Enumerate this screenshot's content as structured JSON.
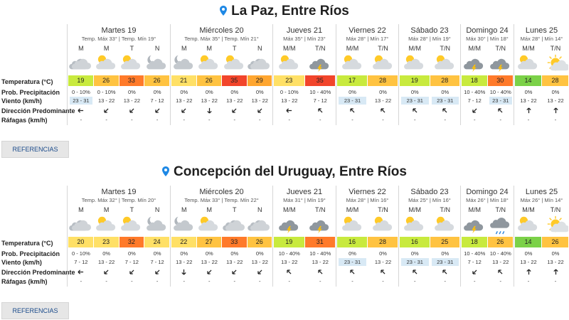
{
  "colors": {
    "pin": "#1e88e5",
    "highlight": "#d8e9f5"
  },
  "row_labels": [
    "Temperatura (°C)",
    "Prob. Precipitación",
    "Viento (km/h)",
    "Dirección Predominante",
    "Ráfagas (km/h)"
  ],
  "references_label": "REFERENCIAS",
  "cities": [
    {
      "name": "La Paz, Entre Ríos",
      "days": [
        {
          "name": "Martes 19",
          "range": "Temp. Máx 33° | Temp. Mín 19°",
          "periods": [
            {
              "label": "M",
              "icon": "cloud-icon",
              "temp": "19",
              "color": "#c8ea3e",
              "precip": "0 - 10%",
              "wind": "23 - 31",
              "hl": true,
              "dir": "left",
              "gust": "-"
            },
            {
              "label": "M",
              "icon": "sun-cloud-icon",
              "temp": "26",
              "color": "#ffc341",
              "precip": "0 - 10%",
              "wind": "13 - 22",
              "hl": false,
              "dir": "downleft",
              "gust": "-"
            },
            {
              "label": "T",
              "icon": "sun-cloud-icon",
              "temp": "33",
              "color": "#ff7a2a",
              "precip": "0%",
              "wind": "13 - 22",
              "hl": false,
              "dir": "downleft",
              "gust": "-"
            },
            {
              "label": "N",
              "icon": "moon-cloud-icon",
              "temp": "26",
              "color": "#ffc341",
              "precip": "0%",
              "wind": "7 - 12",
              "hl": false,
              "dir": "downleft",
              "gust": "-"
            }
          ]
        },
        {
          "name": "Miércoles 20",
          "range": "Temp. Máx 35° | Temp. Mín 21°",
          "periods": [
            {
              "label": "M",
              "icon": "moon-cloud-icon",
              "temp": "21",
              "color": "#ffe066",
              "precip": "0%",
              "wind": "13 - 22",
              "hl": false,
              "dir": "downleft",
              "gust": "-"
            },
            {
              "label": "M",
              "icon": "sun-cloud-icon",
              "temp": "26",
              "color": "#ffc341",
              "precip": "0%",
              "wind": "13 - 22",
              "hl": false,
              "dir": "down",
              "gust": "-"
            },
            {
              "label": "T",
              "icon": "sun-cloud-icon",
              "temp": "35",
              "color": "#f2452b",
              "precip": "0%",
              "wind": "13 - 22",
              "hl": false,
              "dir": "downleft",
              "gust": "-"
            },
            {
              "label": "N",
              "icon": "cloud-icon",
              "temp": "29",
              "color": "#ffa630",
              "precip": "0%",
              "wind": "13 - 22",
              "hl": false,
              "dir": "downleft",
              "gust": "-"
            }
          ]
        },
        {
          "name": "Jueves 21",
          "range": "Máx 35° | Mín 23°",
          "periods": [
            {
              "label": "M/M",
              "icon": "sun-cloud-icon",
              "temp": "23",
              "color": "#ffe066",
              "precip": "0 - 10%",
              "wind": "13 - 22",
              "hl": false,
              "dir": "left",
              "gust": "-"
            },
            {
              "label": "T/N",
              "icon": "storm-icon",
              "temp": "35",
              "color": "#f2452b",
              "precip": "10 - 40%",
              "wind": "7 - 12",
              "hl": false,
              "dir": "upleft",
              "gust": "-"
            }
          ]
        },
        {
          "name": "Viernes 22",
          "range": "Máx 28° | Mín 17°",
          "periods": [
            {
              "label": "M/M",
              "icon": "sun-cloud-icon",
              "temp": "17",
              "color": "#c8ea3e",
              "precip": "0%",
              "wind": "23 - 31",
              "hl": true,
              "dir": "upleft",
              "gust": "-"
            },
            {
              "label": "T/N",
              "icon": "sun-cloud-icon",
              "temp": "28",
              "color": "#ffc341",
              "precip": "0%",
              "wind": "13 - 22",
              "hl": false,
              "dir": "upleft",
              "gust": "-"
            }
          ]
        },
        {
          "name": "Sábado 23",
          "range": "Máx 28° | Mín 19°",
          "periods": [
            {
              "label": "M/M",
              "icon": "sun-cloud-icon",
              "temp": "19",
              "color": "#c8ea3e",
              "precip": "0%",
              "wind": "23 - 31",
              "hl": true,
              "dir": "upleft",
              "gust": "-"
            },
            {
              "label": "T/N",
              "icon": "sun-cloud-icon",
              "temp": "28",
              "color": "#ffc341",
              "precip": "0%",
              "wind": "23 - 31",
              "hl": true,
              "dir": "upleft",
              "gust": "-"
            }
          ]
        },
        {
          "name": "Domingo 24",
          "range": "Máx 30° | Mín 18°",
          "periods": [
            {
              "label": "M/M",
              "icon": "storm-icon",
              "temp": "18",
              "color": "#c8ea3e",
              "precip": "10 - 40%",
              "wind": "7 - 12",
              "hl": false,
              "dir": "downleft",
              "gust": "-"
            },
            {
              "label": "T/N",
              "icon": "storm-icon",
              "temp": "30",
              "color": "#ff7a2a",
              "precip": "10 - 40%",
              "wind": "23 - 31",
              "hl": true,
              "dir": "upleft",
              "gust": "-"
            }
          ]
        },
        {
          "name": "Lunes 25",
          "range": "Máx 28° | Mín 14°",
          "periods": [
            {
              "label": "M/M",
              "icon": "sun-cloud-icon",
              "temp": "14",
              "color": "#7bd148",
              "precip": "0%",
              "wind": "13 - 22",
              "hl": false,
              "dir": "up",
              "gust": "-"
            },
            {
              "label": "T/N",
              "icon": "sun-icon",
              "temp": "28",
              "color": "#ffc341",
              "precip": "0%",
              "wind": "13 - 22",
              "hl": false,
              "dir": "up",
              "gust": "-"
            }
          ]
        }
      ]
    },
    {
      "name": "Concepción del Uruguay, Entre Ríos",
      "days": [
        {
          "name": "Martes 19",
          "range": "Temp. Máx 32° | Temp. Mín 20°",
          "periods": [
            {
              "label": "M",
              "icon": "cloud-icon",
              "temp": "20",
              "color": "#ffe066",
              "precip": "0 - 10%",
              "wind": "7 - 12",
              "hl": false,
              "dir": "left",
              "gust": "-"
            },
            {
              "label": "M",
              "icon": "sun-cloud-icon",
              "temp": "23",
              "color": "#ffe066",
              "precip": "0%",
              "wind": "13 - 22",
              "hl": false,
              "dir": "downleft",
              "gust": "-"
            },
            {
              "label": "T",
              "icon": "sun-cloud-icon",
              "temp": "32",
              "color": "#ff7a2a",
              "precip": "0%",
              "wind": "7 - 12",
              "hl": false,
              "dir": "downleft",
              "gust": "-"
            },
            {
              "label": "N",
              "icon": "moon-cloud-icon",
              "temp": "24",
              "color": "#ffe066",
              "precip": "0%",
              "wind": "7 - 12",
              "hl": false,
              "dir": "downleft",
              "gust": "-"
            }
          ]
        },
        {
          "name": "Miércoles 20",
          "range": "Temp. Máx 33° | Temp. Mín 22°",
          "periods": [
            {
              "label": "M",
              "icon": "moon-cloud-icon",
              "temp": "22",
              "color": "#ffe066",
              "precip": "0%",
              "wind": "13 - 22",
              "hl": false,
              "dir": "down",
              "gust": "-"
            },
            {
              "label": "M",
              "icon": "sun-cloud-icon",
              "temp": "27",
              "color": "#ffc341",
              "precip": "0%",
              "wind": "13 - 22",
              "hl": false,
              "dir": "downleft",
              "gust": "-"
            },
            {
              "label": "T",
              "icon": "cloud-icon",
              "temp": "33",
              "color": "#ff7a2a",
              "precip": "0%",
              "wind": "13 - 22",
              "hl": false,
              "dir": "downleft",
              "gust": "-"
            },
            {
              "label": "N",
              "icon": "cloud-icon",
              "temp": "26",
              "color": "#ffc341",
              "precip": "0%",
              "wind": "13 - 22",
              "hl": false,
              "dir": "downleft",
              "gust": "-"
            }
          ]
        },
        {
          "name": "Jueves 21",
          "range": "Máx 31° | Mín 19°",
          "periods": [
            {
              "label": "M/M",
              "icon": "storm-icon",
              "temp": "19",
              "color": "#c8ea3e",
              "precip": "10 - 40%",
              "wind": "13 - 22",
              "hl": false,
              "dir": "upleft",
              "gust": "-"
            },
            {
              "label": "T/N",
              "icon": "storm-icon",
              "temp": "31",
              "color": "#ff7a2a",
              "precip": "10 - 40%",
              "wind": "13 - 22",
              "hl": false,
              "dir": "upleft",
              "gust": "-"
            }
          ]
        },
        {
          "name": "Viernes 22",
          "range": "Máx 28° | Mín 16°",
          "periods": [
            {
              "label": "M/M",
              "icon": "sun-cloud-icon",
              "temp": "16",
              "color": "#c8ea3e",
              "precip": "0%",
              "wind": "23 - 31",
              "hl": true,
              "dir": "upleft",
              "gust": "-"
            },
            {
              "label": "T/N",
              "icon": "sun-cloud-icon",
              "temp": "28",
              "color": "#ffc341",
              "precip": "0%",
              "wind": "13 - 22",
              "hl": false,
              "dir": "upleft",
              "gust": "-"
            }
          ]
        },
        {
          "name": "Sábado 23",
          "range": "Máx 25° | Mín 16°",
          "periods": [
            {
              "label": "M/M",
              "icon": "sun-cloud-icon",
              "temp": "16",
              "color": "#c8ea3e",
              "precip": "0%",
              "wind": "23 - 31",
              "hl": true,
              "dir": "upleft",
              "gust": "-"
            },
            {
              "label": "T/N",
              "icon": "sun-cloud-icon",
              "temp": "25",
              "color": "#ffc341",
              "precip": "0%",
              "wind": "23 - 31",
              "hl": true,
              "dir": "upleft",
              "gust": "-"
            }
          ]
        },
        {
          "name": "Domingo 24",
          "range": "Máx 26° | Mín 18°",
          "periods": [
            {
              "label": "M/M",
              "icon": "storm-icon",
              "temp": "18",
              "color": "#c8ea3e",
              "precip": "10 - 40%",
              "wind": "7 - 12",
              "hl": false,
              "dir": "downleft",
              "gust": "-"
            },
            {
              "label": "T/N",
              "icon": "rain-icon",
              "temp": "26",
              "color": "#ffc341",
              "precip": "10 - 40%",
              "wind": "13 - 22",
              "hl": false,
              "dir": "upleft",
              "gust": "-"
            }
          ]
        },
        {
          "name": "Lunes 25",
          "range": "Máx 26° | Mín 14°",
          "periods": [
            {
              "label": "M/M",
              "icon": "sun-cloud-icon",
              "temp": "14",
              "color": "#7bd148",
              "precip": "0%",
              "wind": "13 - 22",
              "hl": false,
              "dir": "up",
              "gust": "-"
            },
            {
              "label": "T/N",
              "icon": "sun-icon",
              "temp": "26",
              "color": "#ffc341",
              "precip": "0%",
              "wind": "13 - 22",
              "hl": false,
              "dir": "up",
              "gust": "-"
            }
          ]
        }
      ]
    }
  ]
}
